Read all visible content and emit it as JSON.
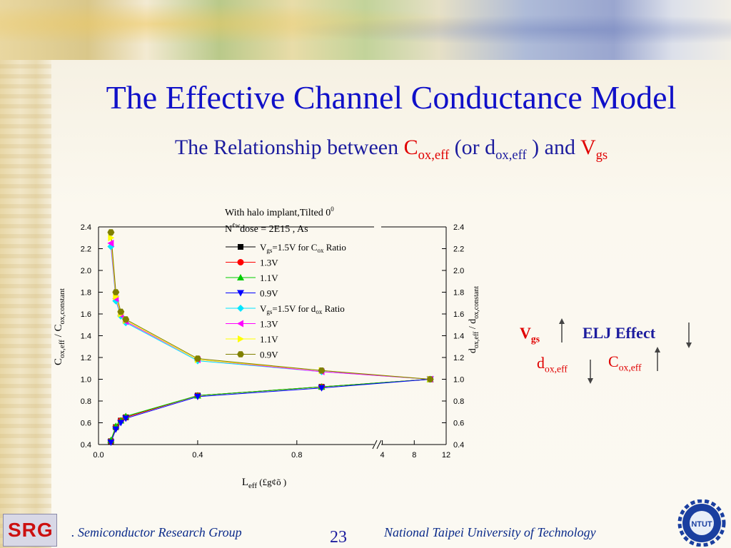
{
  "slide": {
    "title": "The Effective Channel Conductance Model",
    "subtitle": {
      "prefix": "The Relationship between ",
      "c": "C",
      "c_sub": "ox,eff",
      "mid": " (or d",
      "d_sub": "ox,eff",
      "and": " ) and ",
      "v": "V",
      "v_sub": "gs"
    },
    "side_note": {
      "vgs": "V",
      "vgs_sub": "gs",
      "elj": "ELJ Effect",
      "dox": "d",
      "dox_sub": "ox,eff",
      "cox": "C",
      "cox_sub": "ox,eff"
    },
    "footer": {
      "left": ". Semiconductor Research Group",
      "page": "23",
      "right": "National Taipei University of Technology",
      "logo_left": "SRG",
      "logo_right": "NTUT"
    }
  },
  "chart_data": {
    "type": "scatter",
    "annotation_line1": "With halo implant,Tilted 0",
    "annotation_line1_sup": "0",
    "annotation_line2": "N",
    "annotation_line2_sup": "¢w",
    "annotation_line2_rest": "dose = 2E15 , As",
    "xlabel": "L",
    "xlabel_sub": "eff",
    "xlabel_unit": " (£g¢õ )",
    "ylabel_left": "C",
    "ylabel_left_sub1": "ox,eff",
    "ylabel_left_mid": " / C",
    "ylabel_left_sub2": "ox,constant",
    "ylabel_right": "d",
    "ylabel_right_sub1": "ox,eff",
    "ylabel_right_mid": " / d",
    "ylabel_right_sub2": "ox,constant",
    "ylim": [
      0.4,
      2.4
    ],
    "yticks": [
      "0.4",
      "0.6",
      "0.8",
      "1.0",
      "1.2",
      "1.4",
      "1.6",
      "1.8",
      "2.0",
      "2.2",
      "2.4"
    ],
    "xticks": [
      "0.0",
      "0.4",
      "0.8",
      "4",
      "8",
      "12"
    ],
    "x_axis": "broken axis: 0.0–1.1 µm linear, then 4–12",
    "x": [
      0.05,
      0.07,
      0.09,
      0.11,
      0.4,
      0.9,
      10
    ],
    "series": [
      {
        "name": "=1.5V for C",
        "legend_prefix": "V",
        "legend_sub": "gs",
        "legend_sub2": "ox",
        "legend_suffix": " Ratio",
        "marker": "square",
        "color": "#000000",
        "values": [
          0.43,
          0.56,
          0.62,
          0.65,
          0.85,
          0.93,
          1.0
        ]
      },
      {
        "name": "1.3V",
        "marker": "circle",
        "color": "#ff0000",
        "values": [
          0.43,
          0.56,
          0.62,
          0.65,
          0.85,
          0.93,
          1.0
        ]
      },
      {
        "name": "1.1V",
        "marker": "triangle-up",
        "color": "#00cc00",
        "values": [
          0.44,
          0.57,
          0.62,
          0.66,
          0.85,
          0.93,
          1.0
        ]
      },
      {
        "name": "0.9V",
        "marker": "triangle-down",
        "color": "#0000ff",
        "values": [
          0.42,
          0.54,
          0.6,
          0.64,
          0.84,
          0.92,
          1.0
        ]
      },
      {
        "name": "=1.5V for d",
        "legend_prefix": "V",
        "legend_sub": "gs",
        "legend_sub2": "ox",
        "legend_suffix": "  Ratio",
        "marker": "diamond",
        "color": "#00e5ff",
        "values": [
          2.22,
          1.72,
          1.58,
          1.52,
          1.17,
          1.07,
          1.0
        ]
      },
      {
        "name": "1.3V",
        "marker": "triangle-left",
        "color": "#ff00ff",
        "values": [
          2.25,
          1.74,
          1.59,
          1.53,
          1.18,
          1.07,
          1.0
        ]
      },
      {
        "name": "1.1V",
        "marker": "triangle-right",
        "color": "#ffff00",
        "values": [
          2.3,
          1.76,
          1.6,
          1.54,
          1.18,
          1.08,
          1.0
        ]
      },
      {
        "name": "0.9V",
        "marker": "hexagon",
        "color": "#808000",
        "values": [
          2.35,
          1.8,
          1.62,
          1.55,
          1.19,
          1.08,
          1.0
        ]
      }
    ]
  }
}
